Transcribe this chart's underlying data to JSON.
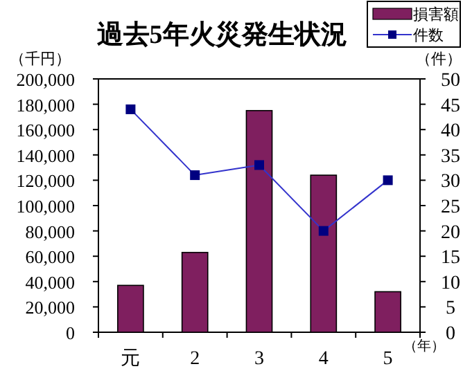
{
  "chart_data": {
    "type": "bar",
    "title": "過去5年火災発生状況",
    "ylabel": "（千円）",
    "y2label": "（件）",
    "xlabel": "（年）",
    "categories": [
      "元",
      "2",
      "3",
      "4",
      "5"
    ],
    "series": [
      {
        "name": "損害額",
        "color": "#7f1f5f",
        "values": [
          37000,
          63000,
          175000,
          124000,
          32000
        ]
      },
      {
        "name": "件数",
        "type": "line",
        "axis": "y2",
        "color": "#3333cc",
        "marker": "square",
        "values": [
          44,
          31,
          33,
          20,
          30
        ]
      }
    ],
    "ylim": [
      0,
      200000
    ],
    "yticks": [
      {
        "value": 0,
        "label": "0"
      },
      {
        "value": 20000,
        "label": "20,000"
      },
      {
        "value": 40000,
        "label": "40,000"
      },
      {
        "value": 60000,
        "label": "60,000"
      },
      {
        "value": 80000,
        "label": "80,000"
      },
      {
        "value": 100000,
        "label": "100,000"
      },
      {
        "value": 120000,
        "label": "120,000"
      },
      {
        "value": 140000,
        "label": "140,000"
      },
      {
        "value": 160000,
        "label": "160,000"
      },
      {
        "value": 180000,
        "label": "180,000"
      },
      {
        "value": 200000,
        "label": "200,000"
      }
    ],
    "y2lim": [
      0,
      50
    ],
    "y2ticks": [
      0,
      5,
      10,
      15,
      20,
      25,
      30,
      35,
      40,
      45,
      50
    ],
    "legend": "top right",
    "grid": false
  }
}
